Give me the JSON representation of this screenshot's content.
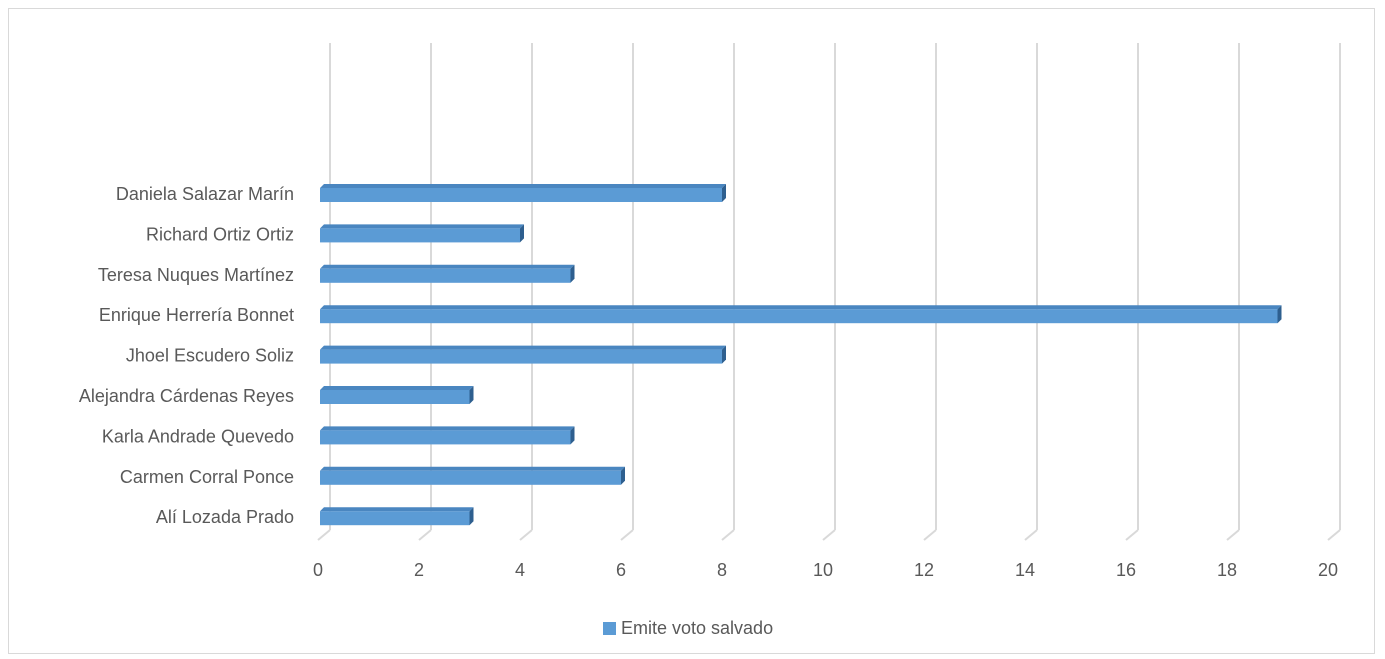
{
  "chart_data": {
    "type": "bar",
    "orientation": "horizontal",
    "style": "3d",
    "categories": [
      "Daniela Salazar Marín",
      "Richard Ortiz Ortiz",
      "Teresa Nuques Martínez",
      "Enrique Herrería Bonnet",
      "Jhoel Escudero Soliz",
      "Alejandra Cárdenas Reyes",
      "Karla Andrade Quevedo",
      "Carmen Corral Ponce",
      "Alí Lozada Prado"
    ],
    "series": [
      {
        "name": "Emite voto salvado",
        "values": [
          8,
          4,
          5,
          19,
          8,
          3,
          5,
          6,
          3
        ],
        "color": "#5b9bd5"
      }
    ],
    "xlim": [
      0,
      20
    ],
    "xticks": [
      "0",
      "2",
      "4",
      "6",
      "8",
      "10",
      "12",
      "14",
      "16",
      "18",
      "20"
    ],
    "grid": true,
    "legend_position": "bottom"
  }
}
